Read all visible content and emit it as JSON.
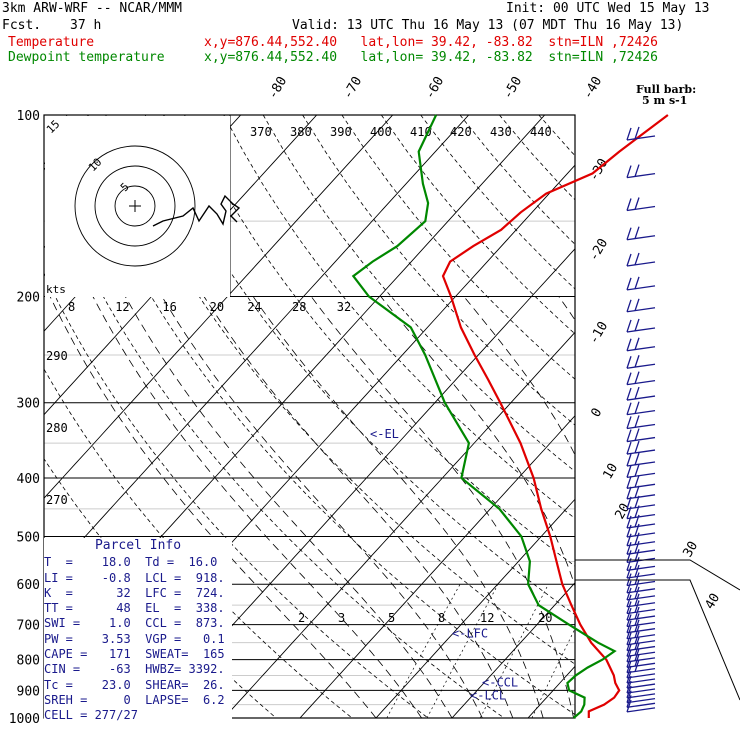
{
  "header": {
    "model": "3km ARW-WRF -- NCAR/MMM",
    "init": "Init: 00 UTC Wed 15 May 13",
    "fcst_label": "Fcst.",
    "fcst_value": "37 h",
    "valid": "Valid: 13 UTC Thu 16 May 13 (07 MDT Thu 16 May 13)",
    "temp_label": "Temperature",
    "dew_label": "Dewpoint temperature",
    "loc_info": "x,y=876.44,552.40   lat,lon= 39.42, -83.82  stn=ILN ,72426"
  },
  "colors": {
    "temperature": "#e00000",
    "dewpoint": "#008800",
    "hodograph_and_text": "#1a1a8c",
    "grid": "#000000"
  },
  "chart_data": {
    "type": "line",
    "chart_kind": "skew-T log-p thermodynamic diagram",
    "y_axis": {
      "quantity": "pressure (hPa)",
      "scale": "log, inverted",
      "range": [
        1000,
        100
      ],
      "ticks": [
        100,
        200,
        300,
        400,
        500,
        600,
        700,
        800,
        900,
        1000
      ]
    },
    "isotherm_labels": [
      "-80",
      "-70",
      "-60",
      "-50",
      "-40",
      "-30",
      "-20",
      "-10",
      "0",
      "10",
      "20",
      "30",
      "40"
    ],
    "theta_labels": [
      "370",
      "380",
      "390",
      "400",
      "410",
      "420",
      "430",
      "440"
    ],
    "theta_labels_left": [
      "290",
      "280",
      "270"
    ],
    "mixing_ratio_labels_upper": [
      "8",
      "12",
      "16",
      "20",
      "24",
      "28",
      "32"
    ],
    "mixing_ratio_labels_lower": [
      "2",
      "3",
      "5",
      "8",
      "12",
      "20"
    ],
    "wind_title": "Full barb:",
    "wind_units": "5 m s-1",
    "levels_markers": [
      "<-EL",
      "<-LFC",
      "<-CCL",
      "<-LCL"
    ],
    "series": [
      {
        "name": "Temperature",
        "points_p_t": [
          [
            1000,
            18.0
          ],
          [
            975,
            17.2
          ],
          [
            950,
            18.4
          ],
          [
            925,
            18.9
          ],
          [
            900,
            18.7
          ],
          [
            875,
            17.3
          ],
          [
            850,
            16.2
          ],
          [
            800,
            13.3
          ],
          [
            750,
            9.3
          ],
          [
            700,
            5.7
          ],
          [
            650,
            2.2
          ],
          [
            600,
            -1.5
          ],
          [
            550,
            -5.0
          ],
          [
            500,
            -8.8
          ],
          [
            450,
            -13.3
          ],
          [
            400,
            -18.0
          ],
          [
            350,
            -23.9
          ],
          [
            300,
            -31.4
          ],
          [
            275,
            -35.7
          ],
          [
            250,
            -40.5
          ],
          [
            225,
            -45.6
          ],
          [
            200,
            -50.6
          ],
          [
            185,
            -54.1
          ],
          [
            175,
            -54.9
          ],
          [
            165,
            -53.7
          ],
          [
            155,
            -52.0
          ],
          [
            145,
            -51.5
          ],
          [
            135,
            -50.4
          ],
          [
            125,
            -46.7
          ],
          [
            115,
            -45.8
          ],
          [
            100,
            -43.8
          ]
        ]
      },
      {
        "name": "Dewpoint temperature",
        "points_p_t": [
          [
            1000,
            16.0
          ],
          [
            975,
            16.2
          ],
          [
            950,
            15.8
          ],
          [
            925,
            15.0
          ],
          [
            900,
            12.1
          ],
          [
            875,
            11.0
          ],
          [
            850,
            11.2
          ],
          [
            825,
            11.8
          ],
          [
            800,
            12.8
          ],
          [
            775,
            13.4
          ],
          [
            750,
            10.2
          ],
          [
            700,
            4.2
          ],
          [
            650,
            -2.1
          ],
          [
            600,
            -6.0
          ],
          [
            550,
            -8.5
          ],
          [
            500,
            -12.6
          ],
          [
            450,
            -18.8
          ],
          [
            400,
            -27.5
          ],
          [
            350,
            -30.7
          ],
          [
            300,
            -38.7
          ],
          [
            250,
            -47.0
          ],
          [
            225,
            -52.2
          ],
          [
            200,
            -61.4
          ],
          [
            185,
            -65.9
          ],
          [
            175,
            -65.1
          ],
          [
            165,
            -63.7
          ],
          [
            150,
            -63.0
          ],
          [
            140,
            -64.8
          ],
          [
            130,
            -67.8
          ],
          [
            115,
            -72.2
          ],
          [
            100,
            -74.3
          ]
        ]
      }
    ],
    "hodograph": {
      "ring_labels": [
        "5",
        "10",
        "15"
      ],
      "units": "kts"
    }
  },
  "parcel_info": {
    "title": "Parcel Info",
    "rows": [
      "T  =    18.0  Td =  16.0",
      "LI =    -0.8  LCL =  918.",
      "K  =      32  LFC =  724.",
      "TT =      48  EL  =  338.",
      "SWI =    1.0  CCL =  873.",
      "PW =    3.53  VGP =   0.1",
      "CAPE =   171  SWEAT=  165",
      "CIN =    -63  HWBZ= 3392.",
      "Tc =    23.0  SHEAR=  26.",
      "SREH =     0  LAPSE=  6.2",
      "CELL = 277/27"
    ]
  }
}
